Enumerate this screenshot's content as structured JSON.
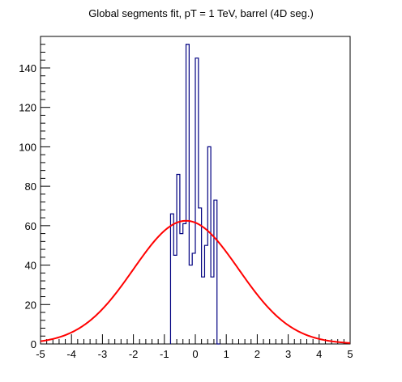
{
  "chart_data": {
    "type": "histogram_with_fit",
    "title": "Global segments fit, pT = 1 TeV, barrel (4D seg.)",
    "xlim": [
      -5,
      5
    ],
    "ylim": [
      0,
      156
    ],
    "x_ticks": [
      -5,
      -4,
      -3,
      -2,
      -1,
      0,
      1,
      2,
      3,
      4,
      5
    ],
    "y_ticks": [
      0,
      20,
      40,
      60,
      80,
      100,
      120,
      140
    ],
    "histogram": {
      "color": "#000080",
      "bin_width": 0.1,
      "bins_low_edges": [
        -0.8,
        -0.7,
        -0.6,
        -0.5,
        -0.4,
        -0.3,
        -0.2,
        -0.1,
        0.0,
        0.1,
        0.2,
        0.3,
        0.4,
        0.5,
        0.6,
        0.7
      ],
      "values": [
        66,
        45,
        86,
        56,
        61,
        152,
        40,
        46,
        145,
        69,
        34,
        50,
        100,
        34,
        73,
        0
      ]
    },
    "fit": {
      "function": "gaussian",
      "color": "#ff0000",
      "amplitude": 62.5,
      "mean": -0.3,
      "sigma": 1.7
    }
  }
}
